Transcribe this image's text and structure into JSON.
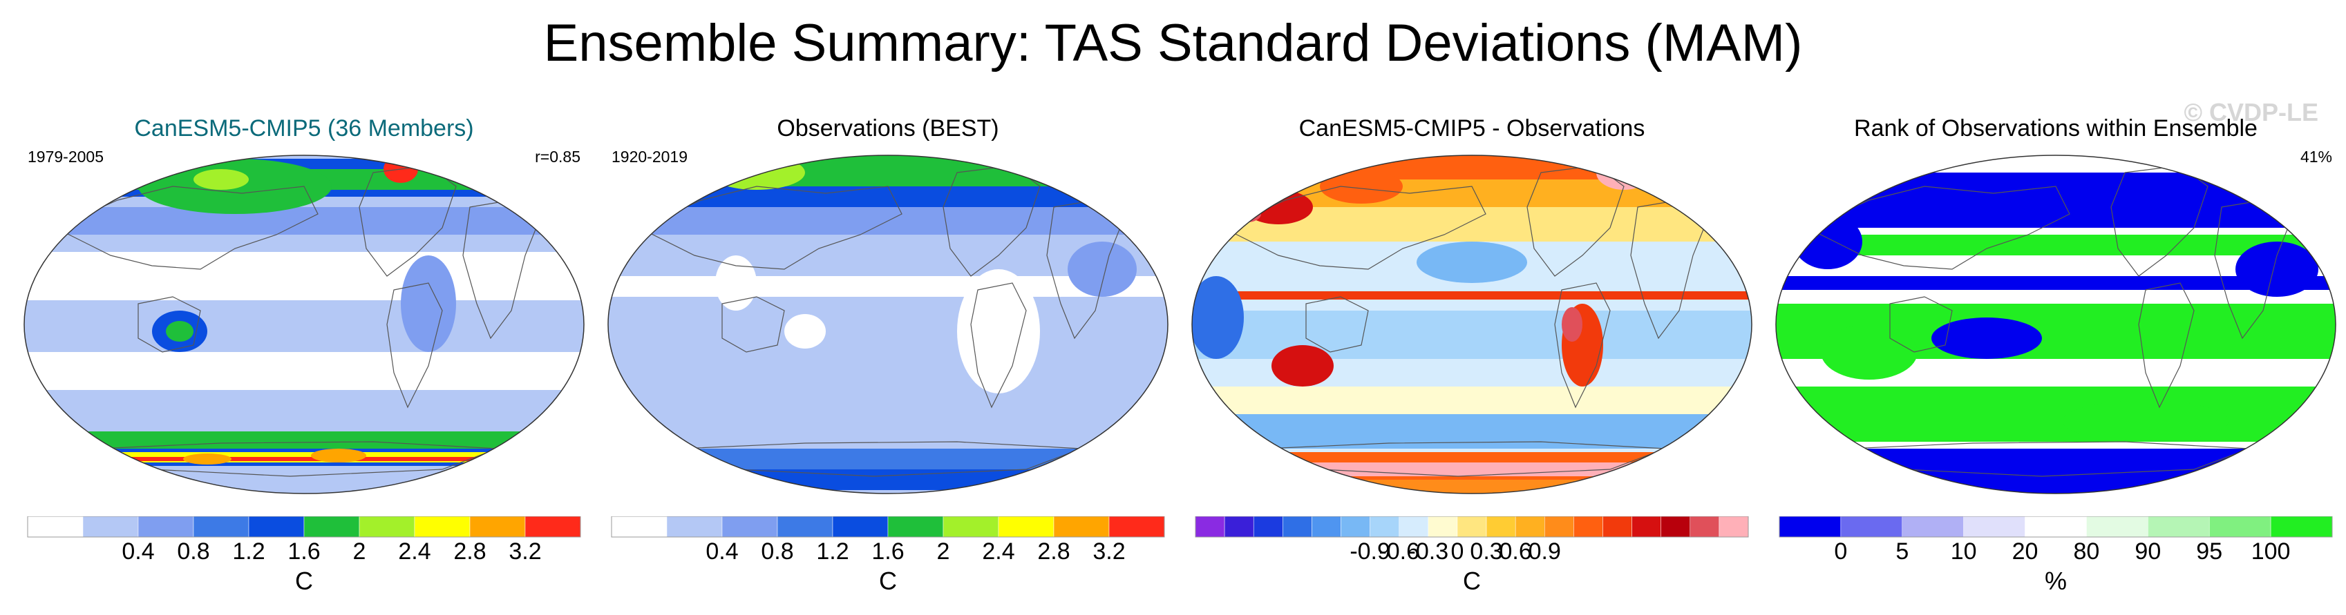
{
  "header": {
    "title": "Ensemble Summary: TAS Standard Deviations (MAM)"
  },
  "watermark": "© CVDP-LE",
  "chart_data": [
    {
      "type": "heatmap",
      "title": "CanESM5-CMIP5 (36 Members)",
      "title_color": "#0b6a7a",
      "left_label": "1979-2005",
      "right_label": "r=0.85",
      "colorbar_label": "C",
      "levels": [
        "0.4",
        "0.8",
        "1.2",
        "1.6",
        "2",
        "2.4",
        "2.8",
        "3.2"
      ],
      "colors": [
        "#ffffff",
        "#b4c8f5",
        "#7f9ef0",
        "#3d7ae6",
        "#0a4de0",
        "#1fbf3a",
        "#a3f02a",
        "#ffff00",
        "#ffa500",
        "#ff2a1a"
      ],
      "pattern": "model"
    },
    {
      "type": "heatmap",
      "title": "Observations (BEST)",
      "title_color": "#000000",
      "left_label": "1920-2019",
      "right_label": "",
      "colorbar_label": "C",
      "levels": [
        "0.4",
        "0.8",
        "1.2",
        "1.6",
        "2",
        "2.4",
        "2.8",
        "3.2"
      ],
      "colors": [
        "#ffffff",
        "#b4c8f5",
        "#7f9ef0",
        "#3d7ae6",
        "#0a4de0",
        "#1fbf3a",
        "#a3f02a",
        "#ffff00",
        "#ffa500",
        "#ff2a1a"
      ],
      "pattern": "obs"
    },
    {
      "type": "heatmap",
      "title": "CanESM5-CMIP5 - Observations",
      "title_color": "#000000",
      "left_label": "",
      "right_label": "",
      "colorbar_label": "C",
      "levels": [
        "-0.9",
        "-0.6",
        "-0.3",
        "0",
        "0.3",
        "0.6",
        "0.9"
      ],
      "colors": [
        "#8a2be2",
        "#3a1fd9",
        "#1b3be0",
        "#2f6fe6",
        "#4f95f0",
        "#78b8f5",
        "#a7d5fa",
        "#d6ecfd",
        "#fffbd0",
        "#ffe680",
        "#ffcc33",
        "#ffb020",
        "#ff8c1a",
        "#ff6010",
        "#f23a0c",
        "#d61010",
        "#b8000c",
        "#e0505a",
        "#ffb0b8"
      ],
      "pattern": "diff"
    },
    {
      "type": "heatmap",
      "title": "Rank of Observations within Ensemble",
      "title_color": "#000000",
      "left_label": "",
      "right_label": "41%",
      "colorbar_label": "%",
      "levels": [
        "0",
        "5",
        "10",
        "20",
        "80",
        "90",
        "95",
        "100"
      ],
      "colors": [
        "#0000ee",
        "#6a6af0",
        "#b0b0f5",
        "#e0e0fb",
        "#ffffff",
        "#e3fbe3",
        "#b5f5b5",
        "#80f080",
        "#22ee22"
      ],
      "pattern": "rank"
    }
  ]
}
